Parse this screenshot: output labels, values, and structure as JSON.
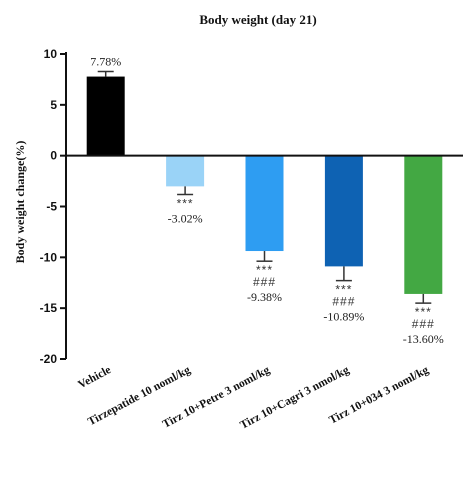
{
  "chart_data": {
    "type": "bar",
    "title": "Body weight (day 21)",
    "ylabel": "Body weight change(%)",
    "xlabel": "",
    "ylim": [
      -20,
      10
    ],
    "yticks": [
      10,
      5,
      0,
      -5,
      -10,
      -15,
      -20
    ],
    "categories": [
      "Vehicle",
      "Tirzepatide 10 noml/kg",
      "Tirz 10+Petre 3 noml/kg",
      "Tirz 10+Cagri 3 nmol/kg",
      "Tirz 10+034 3 noml/kg"
    ],
    "values": [
      7.78,
      -3.02,
      -9.38,
      -10.89,
      -13.6
    ],
    "errors": [
      0.5,
      0.8,
      1.0,
      1.4,
      0.9
    ],
    "value_labels": [
      "7.78%",
      "-3.02%",
      "-9.38%",
      "-10.89%",
      "-13.60%"
    ],
    "significance": [
      [],
      [
        "***"
      ],
      [
        "***",
        "###"
      ],
      [
        "***",
        "###"
      ],
      [
        "***",
        "###"
      ]
    ],
    "colors": [
      "#000000",
      "#9ad3f7",
      "#2e9df2",
      "#0e62b3",
      "#43a843"
    ],
    "grid": false
  }
}
